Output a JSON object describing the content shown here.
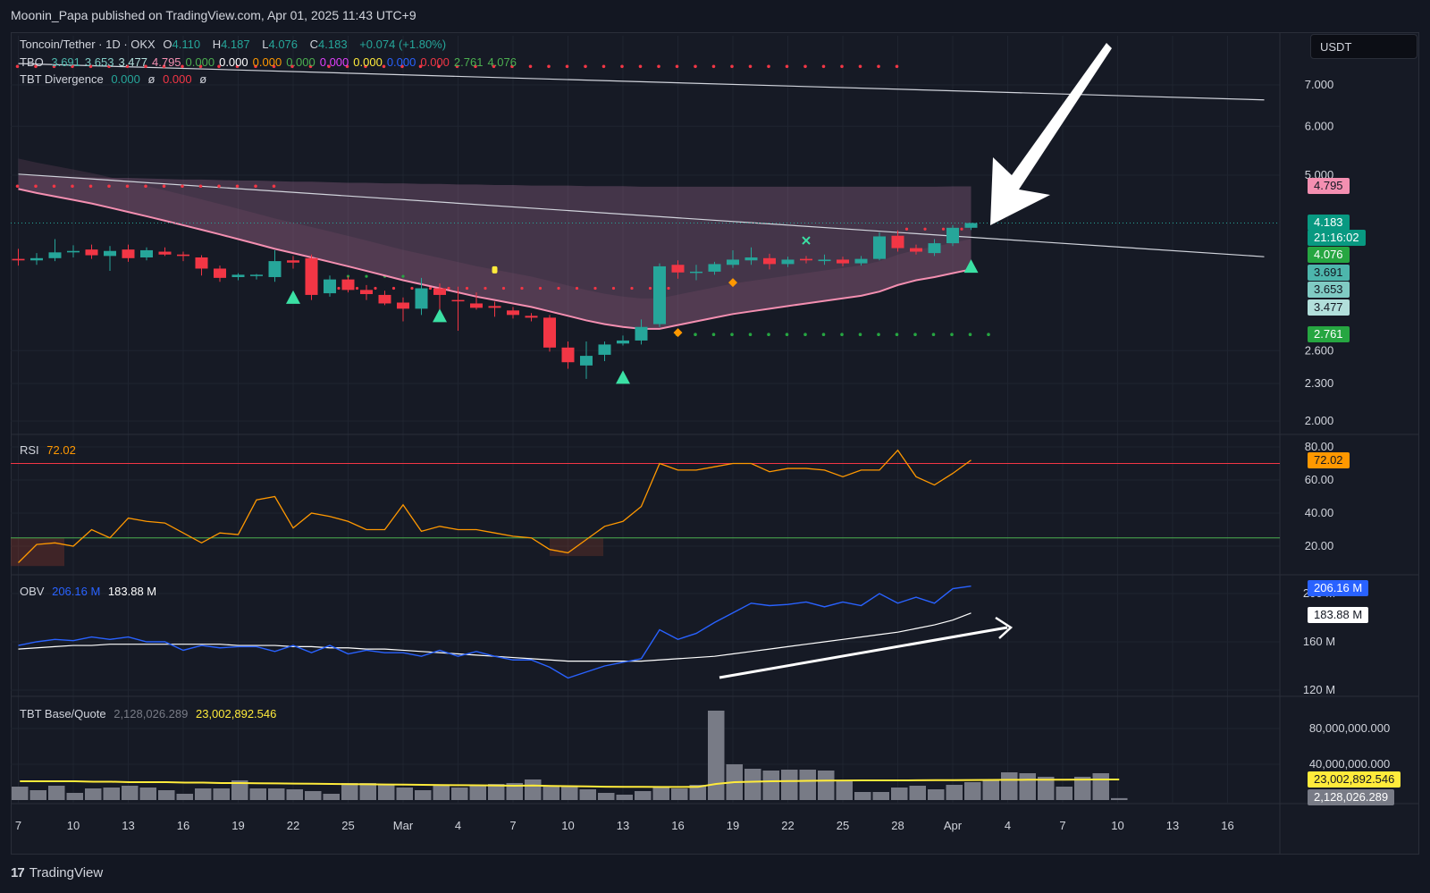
{
  "header": {
    "publish_text": "Moonin_Papa published on TradingView.com, Apr 01, 2025 11:43 UTC+9"
  },
  "footer": {
    "brand": "TradingView",
    "logo_glyph": "17"
  },
  "scale_label": "USDT",
  "legend": {
    "symbol": "Toncoin/Tether · 1D · OKX",
    "o_label": "O",
    "o_value": "4.110",
    "h_label": "H",
    "h_value": "4.187",
    "l_label": "L",
    "l_value": "4.076",
    "c_label": "C",
    "c_value": "4.183",
    "change": "+0.074 (+1.80%)",
    "tbo": {
      "name": "TBO",
      "values": [
        {
          "v": "3.691",
          "color": "#4db6ac"
        },
        {
          "v": "3.653",
          "color": "#80cbc4"
        },
        {
          "v": "3.477",
          "color": "#b2dfdb"
        },
        {
          "v": "4.795",
          "color": "#f48fb1"
        },
        {
          "v": "0.000",
          "color": "#4caf50"
        },
        {
          "v": "0.000",
          "color": "#ffffff"
        },
        {
          "v": "0.000",
          "color": "#ff9800"
        },
        {
          "v": "0.000",
          "color": "#4caf50"
        },
        {
          "v": "0.000",
          "color": "#e040fb"
        },
        {
          "v": "0.000",
          "color": "#ffeb3b"
        },
        {
          "v": "0.000",
          "color": "#2962ff"
        },
        {
          "v": "0.000",
          "color": "#f23645"
        },
        {
          "v": "2.761",
          "color": "#4caf50"
        },
        {
          "v": "4.076",
          "color": "#4caf50"
        }
      ]
    },
    "divergence": {
      "name": "TBT Divergence",
      "v1": "0.000",
      "s1": "ø",
      "v2": "0.000",
      "s2": "ø"
    }
  },
  "price_tags": [
    {
      "text": "4.795",
      "bg": "#f48fb1",
      "fg": "#131722"
    },
    {
      "text": "4.183",
      "bg": "#089981",
      "fg": "#ffffff"
    },
    {
      "text": "21:16:02",
      "bg": "#089981",
      "fg": "#ffffff"
    },
    {
      "text": "4.076",
      "bg": "#26a641",
      "fg": "#ffffff"
    },
    {
      "text": "3.691",
      "bg": "#4db6ac",
      "fg": "#131722"
    },
    {
      "text": "3.653",
      "bg": "#80cbc4",
      "fg": "#131722"
    },
    {
      "text": "3.477",
      "bg": "#b2dfdb",
      "fg": "#131722"
    },
    {
      "text": "2.761",
      "bg": "#26a641",
      "fg": "#ffffff"
    }
  ],
  "rsi": {
    "name": "RSI",
    "value": "72.02"
  },
  "obv": {
    "name": "OBV",
    "value1": "206.16 M",
    "value2": "183.88 M"
  },
  "tbt_bq": {
    "name": "TBT Base/Quote",
    "value1": "2,128,026.289",
    "value2": "23,002,892.546"
  },
  "colors": {
    "up": "#26a69a",
    "down": "#f23645",
    "rsi": "#ff9800",
    "obv": "#2962ff",
    "ma": "#f48fb1",
    "bq_ma": "#ffeb3b",
    "bq_bar": "#787b86"
  },
  "chart_data": [
    {
      "type": "candlestick",
      "title": "Toncoin/Tether · 1D · OKX",
      "x_ticks": [
        "7",
        "10",
        "13",
        "16",
        "19",
        "22",
        "25",
        "Mar",
        "4",
        "7",
        "10",
        "13",
        "16",
        "19",
        "22",
        "25",
        "28",
        "Apr",
        "4",
        "7",
        "10",
        "13",
        "16"
      ],
      "y_ticks": [
        "7.000",
        "6.000",
        "5.000",
        "2.600",
        "2.300",
        "2.000"
      ],
      "y_scale": "log",
      "ylim": [
        1.95,
        8.5
      ],
      "candles": [
        {
          "o": 3.66,
          "h": 3.8,
          "l": 3.57,
          "c": 3.64
        },
        {
          "o": 3.64,
          "h": 3.74,
          "l": 3.58,
          "c": 3.67
        },
        {
          "o": 3.67,
          "h": 3.94,
          "l": 3.63,
          "c": 3.75
        },
        {
          "o": 3.75,
          "h": 3.85,
          "l": 3.68,
          "c": 3.77
        },
        {
          "o": 3.79,
          "h": 3.86,
          "l": 3.66,
          "c": 3.71
        },
        {
          "o": 3.7,
          "h": 3.84,
          "l": 3.5,
          "c": 3.77
        },
        {
          "o": 3.79,
          "h": 3.86,
          "l": 3.62,
          "c": 3.67
        },
        {
          "o": 3.68,
          "h": 3.82,
          "l": 3.64,
          "c": 3.78
        },
        {
          "o": 3.76,
          "h": 3.82,
          "l": 3.7,
          "c": 3.72
        },
        {
          "o": 3.72,
          "h": 3.76,
          "l": 3.63,
          "c": 3.7
        },
        {
          "o": 3.68,
          "h": 3.71,
          "l": 3.44,
          "c": 3.53
        },
        {
          "o": 3.53,
          "h": 3.57,
          "l": 3.36,
          "c": 3.41
        },
        {
          "o": 3.42,
          "h": 3.47,
          "l": 3.38,
          "c": 3.45
        },
        {
          "o": 3.44,
          "h": 3.46,
          "l": 3.39,
          "c": 3.45
        },
        {
          "o": 3.42,
          "h": 3.78,
          "l": 3.36,
          "c": 3.63
        },
        {
          "o": 3.64,
          "h": 3.7,
          "l": 3.53,
          "c": 3.61
        },
        {
          "o": 3.67,
          "h": 3.72,
          "l": 3.14,
          "c": 3.2
        },
        {
          "o": 3.22,
          "h": 3.44,
          "l": 3.18,
          "c": 3.39
        },
        {
          "o": 3.39,
          "h": 3.43,
          "l": 3.23,
          "c": 3.26
        },
        {
          "o": 3.26,
          "h": 3.32,
          "l": 3.14,
          "c": 3.21
        },
        {
          "o": 3.2,
          "h": 3.25,
          "l": 3.08,
          "c": 3.1
        },
        {
          "o": 3.11,
          "h": 3.17,
          "l": 2.9,
          "c": 3.04
        },
        {
          "o": 3.04,
          "h": 3.41,
          "l": 2.97,
          "c": 3.28
        },
        {
          "o": 3.28,
          "h": 3.34,
          "l": 2.98,
          "c": 3.2
        },
        {
          "o": 3.14,
          "h": 3.3,
          "l": 2.8,
          "c": 3.13
        },
        {
          "o": 3.1,
          "h": 3.23,
          "l": 3.03,
          "c": 3.05
        },
        {
          "o": 3.07,
          "h": 3.12,
          "l": 2.95,
          "c": 3.05
        },
        {
          "o": 3.02,
          "h": 3.06,
          "l": 2.93,
          "c": 2.97
        },
        {
          "o": 2.96,
          "h": 2.99,
          "l": 2.9,
          "c": 2.94
        },
        {
          "o": 2.94,
          "h": 2.97,
          "l": 2.59,
          "c": 2.63
        },
        {
          "o": 2.63,
          "h": 2.69,
          "l": 2.43,
          "c": 2.49
        },
        {
          "o": 2.46,
          "h": 2.69,
          "l": 2.34,
          "c": 2.55
        },
        {
          "o": 2.56,
          "h": 2.69,
          "l": 2.5,
          "c": 2.66
        },
        {
          "o": 2.67,
          "h": 2.75,
          "l": 2.65,
          "c": 2.7
        },
        {
          "o": 2.7,
          "h": 2.92,
          "l": 2.66,
          "c": 2.84
        },
        {
          "o": 2.87,
          "h": 3.6,
          "l": 2.84,
          "c": 3.56
        },
        {
          "o": 3.58,
          "h": 3.64,
          "l": 3.4,
          "c": 3.48
        },
        {
          "o": 3.48,
          "h": 3.58,
          "l": 3.38,
          "c": 3.49
        },
        {
          "o": 3.49,
          "h": 3.62,
          "l": 3.45,
          "c": 3.59
        },
        {
          "o": 3.58,
          "h": 3.78,
          "l": 3.54,
          "c": 3.65
        },
        {
          "o": 3.64,
          "h": 3.82,
          "l": 3.58,
          "c": 3.68
        },
        {
          "o": 3.67,
          "h": 3.73,
          "l": 3.52,
          "c": 3.59
        },
        {
          "o": 3.59,
          "h": 3.69,
          "l": 3.55,
          "c": 3.65
        },
        {
          "o": 3.66,
          "h": 3.7,
          "l": 3.6,
          "c": 3.64
        },
        {
          "o": 3.63,
          "h": 3.72,
          "l": 3.58,
          "c": 3.65
        },
        {
          "o": 3.65,
          "h": 3.69,
          "l": 3.56,
          "c": 3.6
        },
        {
          "o": 3.6,
          "h": 3.7,
          "l": 3.57,
          "c": 3.66
        },
        {
          "o": 3.66,
          "h": 4.04,
          "l": 3.64,
          "c": 3.98
        },
        {
          "o": 3.99,
          "h": 4.07,
          "l": 3.76,
          "c": 3.81
        },
        {
          "o": 3.81,
          "h": 3.86,
          "l": 3.72,
          "c": 3.76
        },
        {
          "o": 3.74,
          "h": 3.94,
          "l": 3.7,
          "c": 3.88
        },
        {
          "o": 3.88,
          "h": 4.15,
          "l": 3.84,
          "c": 4.11
        },
        {
          "o": 4.11,
          "h": 4.187,
          "l": 4.076,
          "c": 4.183
        }
      ],
      "ma_pink": [
        4.75,
        4.68,
        4.62,
        4.56,
        4.5,
        4.43,
        4.36,
        4.29,
        4.22,
        4.15,
        4.08,
        4.01,
        3.94,
        3.87,
        3.8,
        3.74,
        3.68,
        3.62,
        3.56,
        3.5,
        3.44,
        3.38,
        3.33,
        3.28,
        3.23,
        3.18,
        3.14,
        3.1,
        3.06,
        3.01,
        2.96,
        2.91,
        2.87,
        2.84,
        2.82,
        2.82,
        2.86,
        2.9,
        2.94,
        2.98,
        3.01,
        3.04,
        3.07,
        3.1,
        3.13,
        3.16,
        3.19,
        3.24,
        3.32,
        3.38,
        3.42,
        3.47,
        3.52
      ],
      "band_upper": [
        5.0,
        4.99,
        4.98,
        4.97,
        4.96,
        4.95,
        4.95,
        4.94,
        4.93,
        4.92,
        4.92,
        4.91,
        4.9,
        4.9,
        4.89,
        4.88,
        4.88,
        4.87,
        4.86,
        4.86,
        4.85,
        4.85,
        4.84,
        4.84,
        4.83,
        4.83,
        4.82,
        4.82,
        4.81,
        4.81,
        4.81,
        4.8,
        4.8,
        4.8,
        4.79,
        4.79,
        4.79,
        4.79,
        4.79,
        4.79,
        4.79,
        4.79,
        4.79,
        4.79,
        4.79,
        4.79,
        4.79,
        4.79,
        4.79,
        4.79,
        4.79,
        4.795,
        4.795
      ],
      "sup_dots_red_top": {
        "y": 7.5,
        "from": 0,
        "to": 48
      },
      "sup_dots_red_mid": {
        "y": 4.8,
        "from": 0,
        "to": 14
      },
      "sup_dots_green": {
        "y": 2.761,
        "from": 36,
        "to": 53
      },
      "trendline_top": [
        [
          0,
          7.58
        ],
        [
          68,
          6.62
        ]
      ],
      "trendline_mid": [
        [
          0,
          5.02
        ],
        [
          68,
          3.69
        ]
      ],
      "arrow_annotation": "white arrow pointing to last candle"
    },
    {
      "type": "line",
      "title": "RSI",
      "y_ticks": [
        "80.00",
        "60.00",
        "40.00",
        "20.00"
      ],
      "ylim": [
        8,
        84
      ],
      "overbought": 70,
      "oversold": 25,
      "values": [
        10,
        21,
        22,
        20,
        30,
        25,
        37,
        35,
        34,
        28,
        22,
        28,
        27,
        48,
        50,
        31,
        40,
        38,
        35,
        30,
        30,
        45,
        29,
        32,
        30,
        30,
        28,
        26,
        25,
        18,
        16,
        24,
        32,
        35,
        44,
        70,
        66,
        66,
        68,
        70,
        70,
        65,
        67,
        67,
        66,
        62,
        66,
        66,
        78,
        62,
        57,
        64,
        72.02
      ]
    },
    {
      "type": "line",
      "title": "OBV",
      "y_ticks": [
        "200 M",
        "160 M",
        "120 M"
      ],
      "ylim": [
        112,
        213
      ],
      "values": [
        157,
        160,
        162,
        161,
        164,
        162,
        164,
        160,
        160,
        153,
        157,
        155,
        156,
        156,
        152,
        157,
        151,
        157,
        150,
        153,
        151,
        151,
        148,
        153,
        148,
        152,
        148,
        145,
        145,
        139,
        130,
        135,
        140,
        143,
        146,
        170,
        162,
        167,
        176,
        184,
        192,
        190,
        191,
        193,
        189,
        193,
        190,
        200,
        192,
        197,
        192,
        204,
        206.16
      ],
      "ma_values": [
        154,
        155,
        156,
        157,
        157,
        158,
        158,
        158,
        158,
        158,
        158,
        158,
        157,
        157,
        157,
        156,
        156,
        155,
        155,
        154,
        154,
        153,
        152,
        151,
        150,
        149,
        148,
        147,
        146,
        145,
        144,
        144,
        144,
        144,
        144,
        145,
        146,
        147,
        148,
        150,
        152,
        154,
        156,
        158,
        160,
        162,
        164,
        166,
        168,
        171,
        174,
        178,
        183.88
      ],
      "annotation": "white arrow trending up"
    },
    {
      "type": "bar",
      "title": "TBT Base/Quote",
      "y_ticks": [
        "80,000,000.000",
        "40,000,000.000"
      ],
      "ylim": [
        0,
        102000000
      ],
      "values": [
        15000000,
        11000000,
        16000000,
        8000000,
        13000000,
        14000000,
        16000000,
        14000000,
        11000000,
        7000000,
        13000000,
        13000000,
        22000000,
        13000000,
        13000000,
        12000000,
        10000000,
        7000000,
        19000000,
        19000000,
        17000000,
        14000000,
        11000000,
        17000000,
        14000000,
        17000000,
        18000000,
        19000000,
        23000000,
        16000000,
        16000000,
        12000000,
        8000000,
        6000000,
        10000000,
        14000000,
        13000000,
        17000000,
        100000000,
        40000000,
        35000000,
        33000000,
        34000000,
        34000000,
        33000000,
        22000000,
        9000000,
        9000000,
        14000000,
        16000000,
        12000000,
        17000000,
        20000000,
        22000000,
        31000000,
        30000000,
        26000000,
        15000000,
        26000000,
        30000000,
        2128026
      ],
      "ma_values": [
        21000000,
        21000000,
        21000000,
        21000000,
        20500000,
        20500000,
        20000000,
        20000000,
        20000000,
        19500000,
        19500000,
        19000000,
        19000000,
        18800000,
        18600000,
        18400000,
        18200000,
        18000000,
        17800000,
        17600000,
        17400000,
        17200000,
        17000000,
        16800000,
        16600000,
        16500000,
        16300000,
        16000000,
        16200000,
        15800000,
        15500000,
        15300000,
        14900000,
        14800000,
        14700000,
        14600000,
        14600000,
        14700000,
        18000000,
        20000000,
        20500000,
        21000000,
        21200000,
        21500000,
        21800000,
        21900000,
        22000000,
        22000000,
        22000000,
        22100000,
        22200000,
        22300000,
        22400000,
        22500000,
        22600000,
        22700000,
        22800000,
        22800000,
        22900000,
        23000000,
        23002892
      ]
    }
  ]
}
